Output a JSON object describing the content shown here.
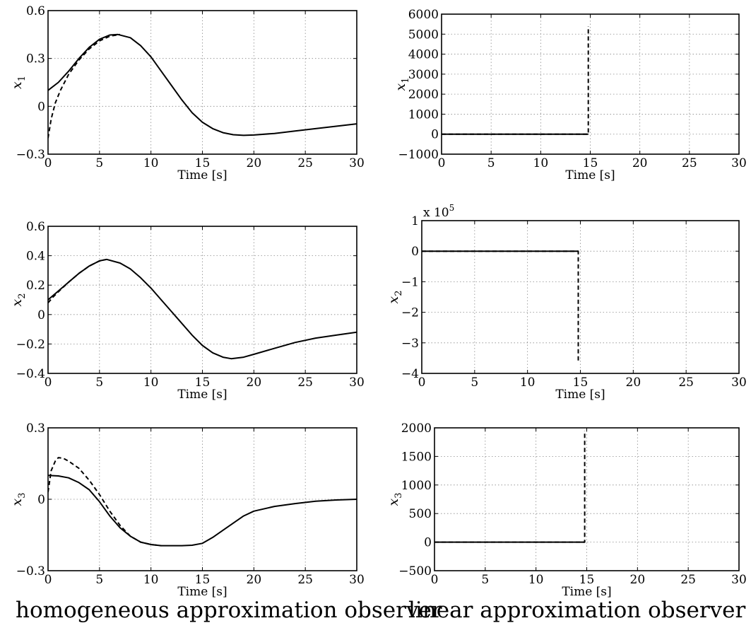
{
  "captions": {
    "left": "homogeneous approximation observer",
    "right": "linear approximation observer"
  },
  "colors": {
    "line": "#000000",
    "grid": "#8a8a8a",
    "background": "#ffffff"
  },
  "chart_data": [
    {
      "id": "hom-x1",
      "type": "line",
      "xlabel": "Time [s]",
      "ylabel": "x",
      "ylabel_sub": "1",
      "xlim": [
        0,
        30
      ],
      "ylim": [
        -0.3,
        0.6
      ],
      "xticks": [
        0,
        5,
        10,
        15,
        20,
        25,
        30
      ],
      "yticks": [
        -0.3,
        0,
        0.3,
        0.6
      ],
      "ytick_labels": [
        "−0.3",
        "0",
        "0.3",
        "0.6"
      ],
      "grid": true,
      "series": [
        {
          "style": "solid",
          "x": [
            0,
            1,
            2,
            3,
            4,
            5,
            6,
            6.8,
            8,
            9,
            10,
            11,
            12,
            13,
            14,
            15,
            16,
            17,
            18,
            19,
            20,
            22,
            24,
            26,
            28,
            30
          ],
          "y": [
            0.1,
            0.15,
            0.22,
            0.3,
            0.37,
            0.42,
            0.447,
            0.45,
            0.43,
            0.38,
            0.31,
            0.22,
            0.13,
            0.04,
            -0.04,
            -0.1,
            -0.14,
            -0.165,
            -0.178,
            -0.182,
            -0.18,
            -0.17,
            -0.155,
            -0.14,
            -0.125,
            -0.11
          ]
        },
        {
          "style": "dashed",
          "x": [
            0,
            0.3,
            0.7,
            1.2,
            2,
            3,
            4,
            5,
            6,
            7
          ],
          "y": [
            -0.2,
            -0.08,
            0.02,
            0.1,
            0.2,
            0.29,
            0.36,
            0.41,
            0.44,
            0.45
          ]
        }
      ]
    },
    {
      "id": "lin-x1",
      "type": "line",
      "xlabel": "Time [s]",
      "ylabel": "x",
      "ylabel_sub": "1",
      "xlim": [
        0,
        30
      ],
      "ylim": [
        -1000,
        6000
      ],
      "xticks": [
        0,
        5,
        10,
        15,
        20,
        25,
        30
      ],
      "yticks": [
        -1000,
        0,
        1000,
        2000,
        3000,
        4000,
        5000,
        6000
      ],
      "ytick_labels": [
        "−1000",
        "0",
        "1000",
        "2000",
        "3000",
        "4000",
        "5000",
        "6000"
      ],
      "grid": true,
      "series": [
        {
          "style": "solid",
          "x": [
            0,
            14.8
          ],
          "y": [
            0,
            0
          ]
        },
        {
          "style": "dashed",
          "x": [
            0,
            14.7,
            14.8,
            14.8
          ],
          "y": [
            0,
            0,
            0,
            5400
          ]
        }
      ]
    },
    {
      "id": "hom-x2",
      "type": "line",
      "xlabel": "Time [s]",
      "ylabel": "x",
      "ylabel_sub": "2",
      "xlim": [
        0,
        30
      ],
      "ylim": [
        -0.4,
        0.6
      ],
      "xticks": [
        0,
        5,
        10,
        15,
        20,
        25,
        30
      ],
      "yticks": [
        -0.4,
        -0.2,
        0,
        0.2,
        0.4,
        0.6
      ],
      "ytick_labels": [
        "−0.4",
        "−0.2",
        "0",
        "0.2",
        "0.4",
        "0.6"
      ],
      "grid": true,
      "series": [
        {
          "style": "solid",
          "x": [
            0,
            1,
            2,
            3,
            4,
            5,
            5.7,
            7,
            8,
            9,
            10,
            11,
            12,
            13,
            14,
            15,
            16,
            17,
            17.8,
            19,
            20,
            22,
            24,
            26,
            28,
            30
          ],
          "y": [
            0.1,
            0.16,
            0.22,
            0.28,
            0.33,
            0.365,
            0.375,
            0.35,
            0.31,
            0.25,
            0.18,
            0.1,
            0.02,
            -0.06,
            -0.14,
            -0.21,
            -0.26,
            -0.29,
            -0.3,
            -0.29,
            -0.27,
            -0.23,
            -0.19,
            -0.16,
            -0.14,
            -0.12
          ]
        },
        {
          "style": "dashed",
          "x": [
            0,
            0.5,
            1,
            2,
            3,
            4,
            5,
            5.7
          ],
          "y": [
            0.08,
            0.12,
            0.155,
            0.22,
            0.28,
            0.33,
            0.365,
            0.375
          ]
        }
      ]
    },
    {
      "id": "lin-x2",
      "type": "line",
      "xlabel": "Time [s]",
      "ylabel": "x",
      "ylabel_sub": "2",
      "scale_label": "x 10",
      "scale_exponent": "5",
      "xlim": [
        0,
        30
      ],
      "ylim": [
        -4,
        1
      ],
      "xticks": [
        0,
        5,
        10,
        15,
        20,
        25,
        30
      ],
      "yticks": [
        -4,
        -3,
        -2,
        -1,
        0,
        1
      ],
      "ytick_labels": [
        "−4",
        "−3",
        "−2",
        "−1",
        "0",
        "1"
      ],
      "grid": true,
      "series": [
        {
          "style": "solid",
          "x": [
            0,
            14.8
          ],
          "y": [
            0,
            0
          ]
        },
        {
          "style": "dashed",
          "x": [
            0,
            14.8,
            14.8
          ],
          "y": [
            0,
            0,
            -3.6
          ]
        }
      ]
    },
    {
      "id": "hom-x3",
      "type": "line",
      "xlabel": "Time [s]",
      "ylabel": "x",
      "ylabel_sub": "3",
      "xlim": [
        0,
        30
      ],
      "ylim": [
        -0.3,
        0.3
      ],
      "xticks": [
        0,
        5,
        10,
        15,
        20,
        25,
        30
      ],
      "yticks": [
        -0.3,
        0,
        0.3
      ],
      "ytick_labels": [
        "−0.3",
        "0",
        "0.3"
      ],
      "grid": true,
      "series": [
        {
          "style": "solid",
          "x": [
            0,
            1,
            2,
            3,
            4,
            5,
            6,
            7,
            8,
            9,
            10,
            11,
            12,
            13,
            14,
            15,
            16,
            17,
            18,
            19,
            20,
            22,
            24,
            26,
            28,
            30
          ],
          "y": [
            0.1,
            0.098,
            0.09,
            0.07,
            0.04,
            -0.01,
            -0.07,
            -0.12,
            -0.155,
            -0.18,
            -0.19,
            -0.195,
            -0.195,
            -0.195,
            -0.193,
            -0.185,
            -0.16,
            -0.13,
            -0.1,
            -0.07,
            -0.05,
            -0.03,
            -0.018,
            -0.008,
            -0.003,
            0
          ]
        },
        {
          "style": "dashed",
          "x": [
            0,
            0.3,
            0.7,
            1,
            1.5,
            2,
            3,
            4,
            5,
            6,
            7,
            8,
            9,
            10,
            11
          ],
          "y": [
            0.03,
            0.12,
            0.16,
            0.175,
            0.172,
            0.16,
            0.13,
            0.08,
            0.02,
            -0.05,
            -0.11,
            -0.155,
            -0.18,
            -0.19,
            -0.195
          ]
        }
      ]
    },
    {
      "id": "lin-x3",
      "type": "line",
      "xlabel": "Time [s]",
      "ylabel": "x",
      "ylabel_sub": "3",
      "xlim": [
        0,
        30
      ],
      "ylim": [
        -500,
        2000
      ],
      "xticks": [
        0,
        5,
        10,
        15,
        20,
        25,
        30
      ],
      "yticks": [
        -500,
        0,
        500,
        1000,
        1500,
        2000
      ],
      "ytick_labels": [
        "−500",
        "0",
        "500",
        "1000",
        "1500",
        "2000"
      ],
      "grid": true,
      "series": [
        {
          "style": "solid",
          "x": [
            0,
            14.8
          ],
          "y": [
            0,
            0
          ]
        },
        {
          "style": "dashed",
          "x": [
            0,
            14.7,
            14.8,
            14.8
          ],
          "y": [
            0,
            0,
            0,
            1950
          ]
        }
      ]
    }
  ]
}
